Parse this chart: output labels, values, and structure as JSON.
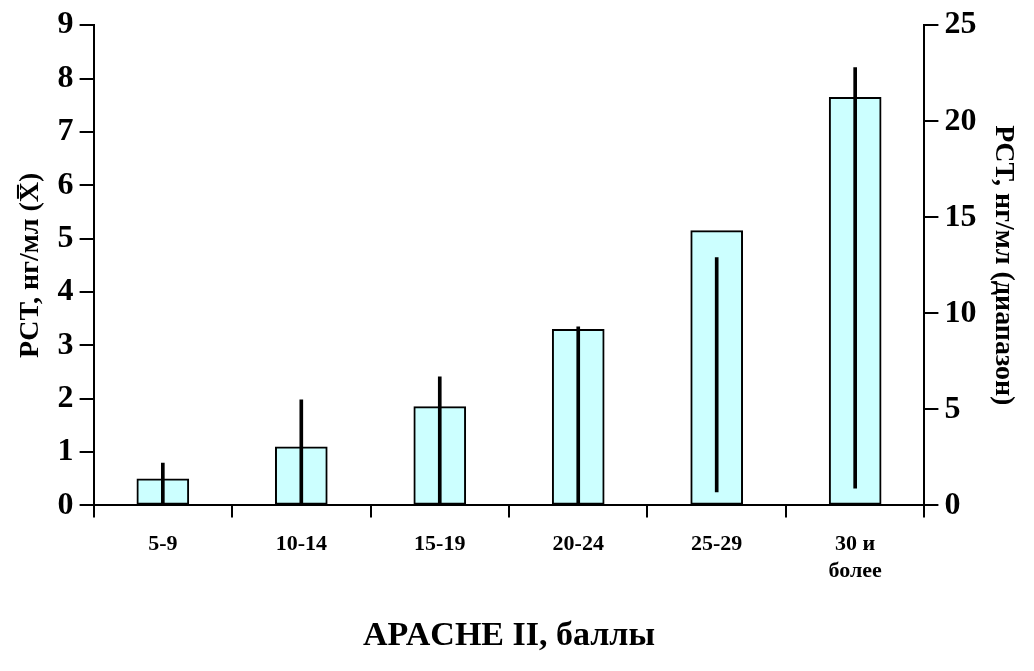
{
  "chart_data": {
    "type": "bar",
    "xlabel": "APACHE II, баллы",
    "ylabel": "PCT, нг/мл (X̅)",
    "y2label": "PCT, нг/мл (диапазон)",
    "categories": [
      "5-9",
      "10-14",
      "15-19",
      "20-24",
      "25-29",
      "30 и более"
    ],
    "series": [
      {
        "type": "bar",
        "color": "#ccffff",
        "values": [
          0.5,
          1.1,
          1.85,
          3.3,
          5.15,
          7.65
        ]
      },
      {
        "type": "bar",
        "axis": "y2",
        "color": "#000000",
        "base": [
          0,
          0,
          0,
          0,
          0.7,
          0.9
        ],
        "values": [
          2.2,
          5.5,
          6.7,
          9.3,
          12.2,
          21.9
        ]
      }
    ],
    "ylim": [
      0,
      9
    ],
    "yticks": [
      0,
      1,
      2,
      3,
      4,
      5,
      6,
      7,
      8,
      9
    ],
    "y2lim": [
      0,
      25
    ],
    "y2ticks": [
      0,
      5,
      10,
      15,
      20,
      25
    ],
    "grid": false,
    "legend": false
  }
}
